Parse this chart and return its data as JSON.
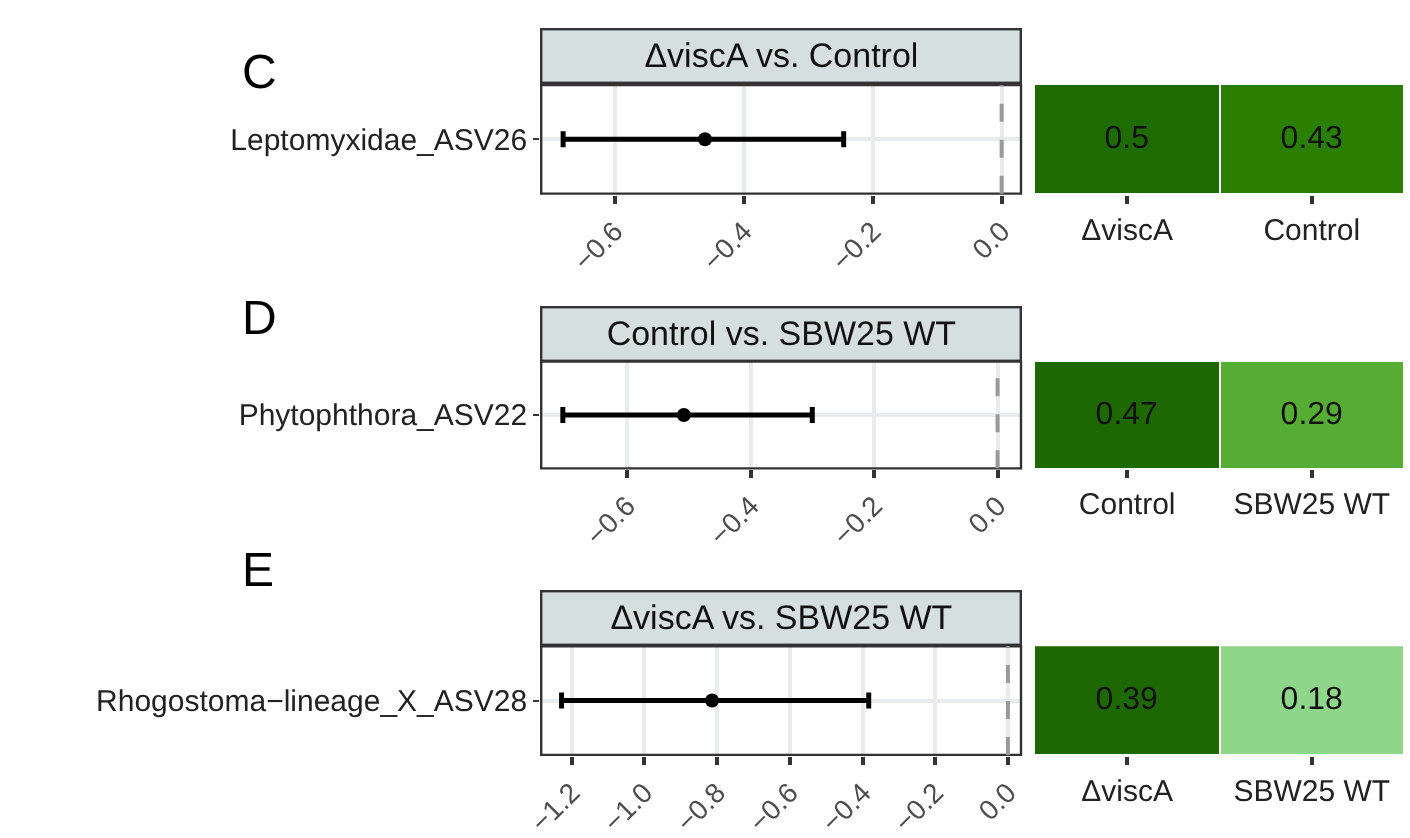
{
  "chart_data": [
    {
      "type": "scatter",
      "orientation": "horizontal",
      "title": "ΔviscA vs. Control",
      "annotations": [
        "C"
      ],
      "categories": [
        "Leptomyxidae_ASV26"
      ],
      "values": [
        -0.46
      ],
      "errors": [
        [
          -0.68,
          -0.245
        ]
      ],
      "color": "#000000",
      "marker": "circle",
      "xlim": [
        -0.714,
        0.03
      ],
      "xticks": [
        {
          "value": -0.6,
          "label": "−0.6"
        },
        {
          "value": -0.4,
          "label": "−0.4"
        },
        {
          "value": -0.2,
          "label": "−0.2"
        },
        {
          "value": 0,
          "label": "0.0"
        }
      ],
      "ref_lines": [
        {
          "axis": "x",
          "value": 0,
          "color": "#9a9a9a",
          "line_style": "dashed"
        }
      ],
      "grid": true
    },
    {
      "type": "other",
      "categories": [
        "ΔviscA",
        "Control"
      ],
      "values": [
        0.5,
        0.43
      ],
      "colors": [
        "#1e6b00",
        "#2a7e00"
      ],
      "data_labels": true
    },
    {
      "type": "scatter",
      "orientation": "horizontal",
      "title": "Control vs. SBW25 WT",
      "annotations": [
        "D"
      ],
      "categories": [
        "Phytophthora_ASV22"
      ],
      "values": [
        -0.508
      ],
      "errors": [
        [
          -0.704,
          -0.3
        ]
      ],
      "color": "#000000",
      "marker": "circle",
      "xlim": [
        -0.739,
        0.038
      ],
      "xticks": [
        {
          "value": -0.6,
          "label": "−0.6"
        },
        {
          "value": -0.4,
          "label": "−0.4"
        },
        {
          "value": -0.2,
          "label": "−0.2"
        },
        {
          "value": 0,
          "label": "0.0"
        }
      ],
      "ref_lines": [
        {
          "axis": "x",
          "value": 0,
          "color": "#9a9a9a",
          "line_style": "dashed"
        }
      ],
      "grid": true
    },
    {
      "type": "other",
      "categories": [
        "Control",
        "SBW25 WT"
      ],
      "values": [
        0.47,
        0.29
      ],
      "colors": [
        "#1d6900",
        "#55ad33"
      ],
      "data_labels": true
    },
    {
      "type": "scatter",
      "orientation": "horizontal",
      "title": "ΔviscA vs. SBW25 WT",
      "annotations": [
        "E"
      ],
      "categories": [
        "Rhogostoma−lineage_X_ASV28"
      ],
      "values": [
        -0.814
      ],
      "errors": [
        [
          -1.228,
          -0.383
        ]
      ],
      "color": "#000000",
      "marker": "circle",
      "xlim": [
        -1.284,
        0.036
      ],
      "xticks": [
        {
          "value": -1.2,
          "label": "−1.2"
        },
        {
          "value": -1.0,
          "label": "−1.0"
        },
        {
          "value": -0.8,
          "label": "−0.8"
        },
        {
          "value": -0.6,
          "label": "−0.6"
        },
        {
          "value": -0.4,
          "label": "−0.4"
        },
        {
          "value": -0.2,
          "label": "−0.2"
        },
        {
          "value": 0,
          "label": "0.0"
        }
      ],
      "ref_lines": [
        {
          "axis": "x",
          "value": 0,
          "color": "#9a9a9a",
          "line_style": "dashed"
        }
      ],
      "grid": true
    },
    {
      "type": "other",
      "categories": [
        "ΔviscA",
        "SBW25 WT"
      ],
      "values": [
        0.39,
        0.18
      ],
      "colors": [
        "#1d6900",
        "#8fd68a"
      ],
      "data_labels": true
    }
  ]
}
